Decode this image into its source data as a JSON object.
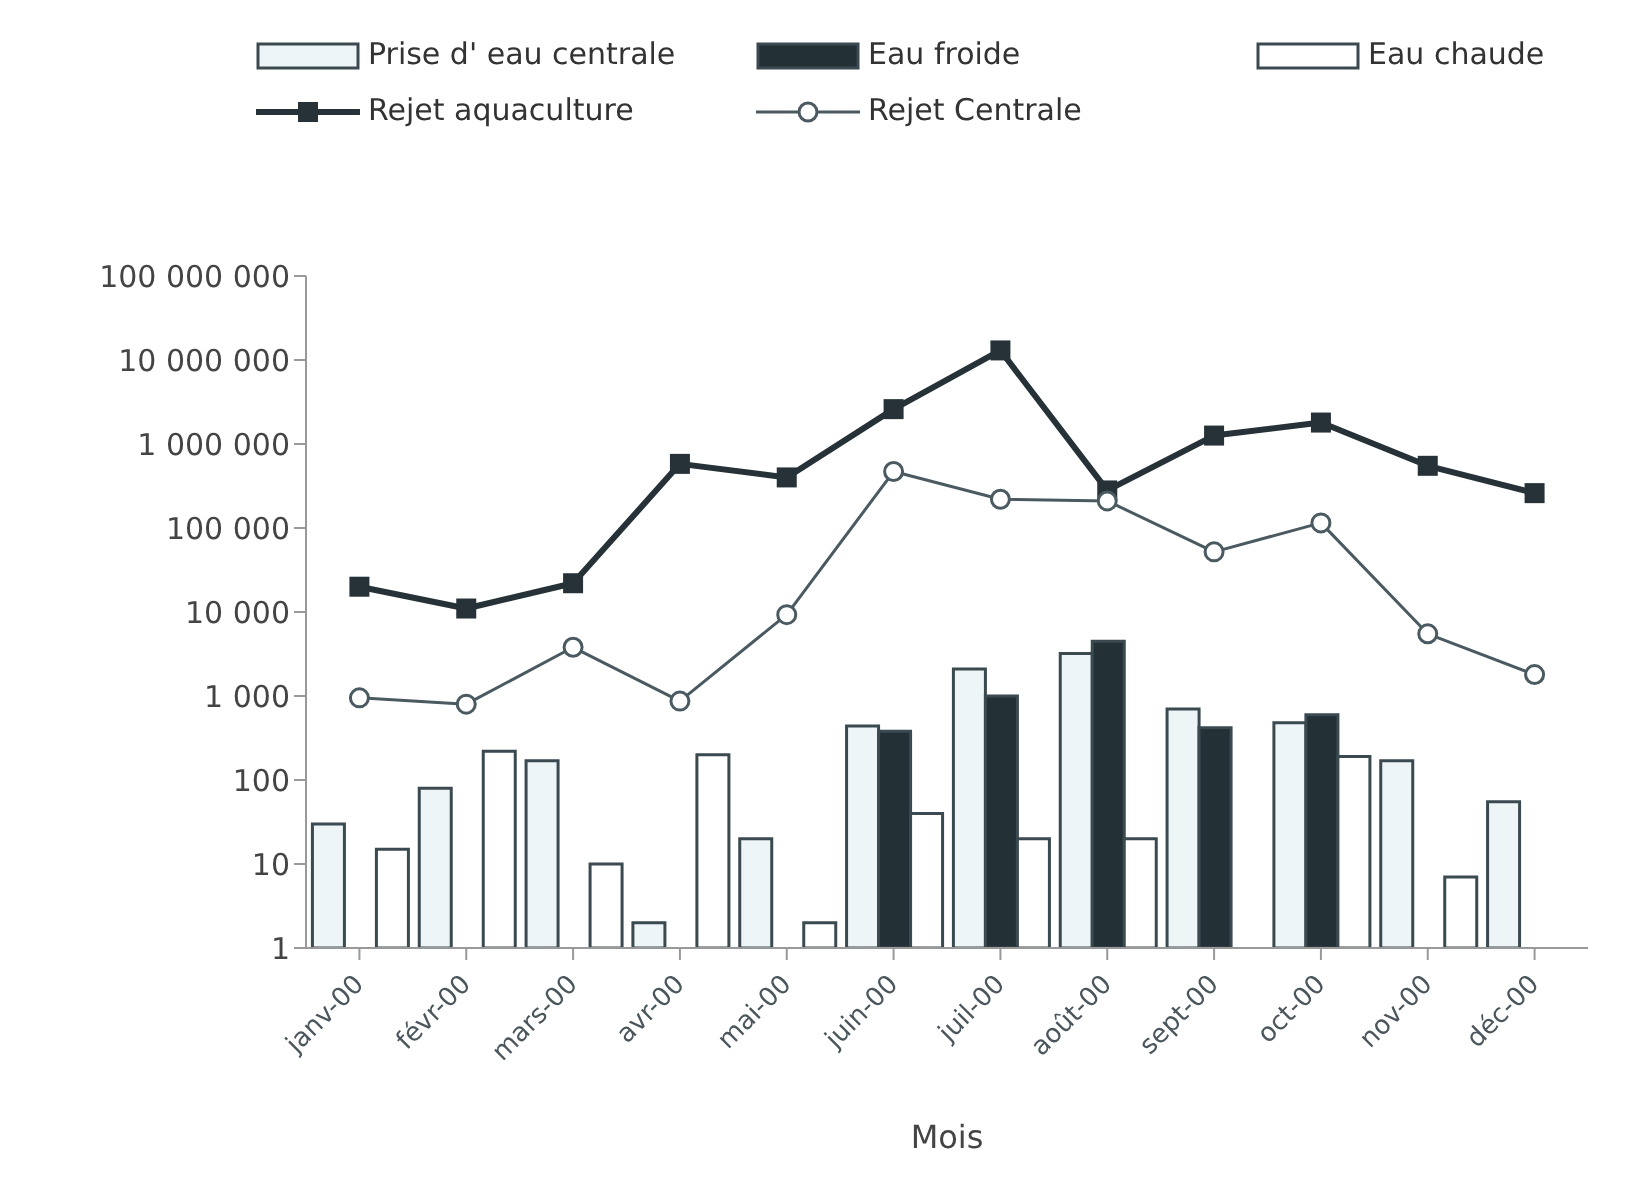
{
  "chart_data": {
    "type": "bar",
    "categories": [
      "janv-00",
      "févr-00",
      "mars-00",
      "avr-00",
      "mai-00",
      "juin-00",
      "juil-00",
      "août-00",
      "sept-00",
      "oct-00",
      "nov-00",
      "déc-00"
    ],
    "series": [
      {
        "name": "Prise d' eau centrale",
        "color": "#eef5f7",
        "values": [
          30,
          80,
          170,
          2,
          20,
          440,
          2100,
          3200,
          700,
          480,
          170,
          55
        ]
      },
      {
        "name": "Eau froide",
        "color": "#233036",
        "values": [
          null,
          null,
          null,
          null,
          null,
          380,
          1000,
          4500,
          420,
          600,
          null,
          null
        ]
      },
      {
        "name": "Eau chaude",
        "color": "#ffffff",
        "values": [
          15,
          220,
          10,
          200,
          2,
          40,
          20,
          20,
          null,
          190,
          7,
          null
        ]
      },
      {
        "name": "Rejet aquaculture",
        "type": "line",
        "color": "#263238",
        "marker": "square",
        "values": [
          20000,
          11000,
          22000,
          580000,
          400000,
          2600000,
          13000000,
          280000,
          1260000,
          1800000,
          550000,
          260000
        ]
      },
      {
        "name": "Rejet Centrale",
        "type": "line",
        "color": "#4a5a60",
        "marker": "circle",
        "values": [
          950,
          800,
          3800,
          870,
          9300,
          470000,
          220000,
          210000,
          52000,
          115000,
          5500,
          1800
        ]
      }
    ],
    "xlabel": "Mois",
    "log": "y",
    "ylim": [
      1,
      100000000
    ],
    "yticks": [
      1,
      10,
      100,
      {
        "value": 1000,
        "label": "1 000"
      },
      {
        "value": 10000,
        "label": "10 000"
      },
      {
        "value": 100000,
        "label": "100 000"
      },
      {
        "value": 1000000,
        "label": "1 000 000"
      },
      {
        "value": 10000000,
        "label": "10 000 000"
      },
      {
        "value": 100000000,
        "label": "100 000 000"
      }
    ],
    "grid": false,
    "legend": "top"
  }
}
